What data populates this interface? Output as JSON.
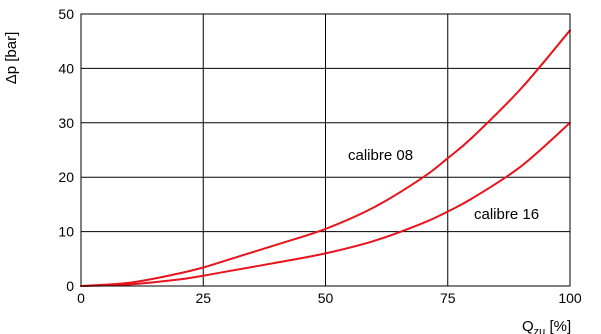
{
  "chart_data": {
    "type": "line",
    "title": "",
    "xlabel": "Q",
    "xlabel_sub": "zu",
    "xlabel_unit": " [%]",
    "ylabel": "Δp [bar]",
    "xlim": [
      0,
      100
    ],
    "ylim": [
      0,
      50
    ],
    "x_ticks": [
      0,
      25,
      50,
      75,
      100
    ],
    "y_ticks": [
      0,
      10,
      20,
      30,
      40,
      50
    ],
    "grid": true,
    "line_color": "#e8131b",
    "series": [
      {
        "name": "calibre 08",
        "x": [
          0,
          10,
          20,
          25,
          30,
          40,
          50,
          60,
          70,
          75,
          80,
          90,
          100
        ],
        "y": [
          0,
          0.6,
          2.3,
          3.4,
          4.8,
          7.6,
          10.5,
          14.5,
          20,
          23.5,
          27.3,
          36.3,
          47
        ]
      },
      {
        "name": "calibre 16",
        "x": [
          0,
          10,
          20,
          25,
          30,
          40,
          50,
          60,
          70,
          75,
          80,
          90,
          100
        ],
        "y": [
          0,
          0.3,
          1.2,
          1.9,
          2.7,
          4.3,
          6,
          8.3,
          11.6,
          13.7,
          16.1,
          22,
          30
        ]
      }
    ]
  }
}
